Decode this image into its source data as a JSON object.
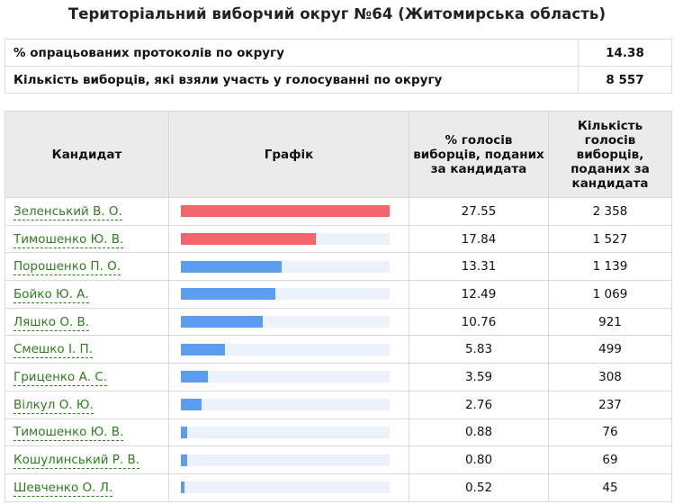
{
  "title": "Територіальний виборчий округ №64 (Житомирська область)",
  "summary": [
    {
      "label": "% опрацьованих протоколів по округу",
      "value": "14.38"
    },
    {
      "label": "Кількість виборців, які взяли участь у голосуванні по округу",
      "value": "8 557"
    }
  ],
  "table": {
    "headers": {
      "candidate": "Кандидат",
      "chart": "Графік",
      "percent": "% голосів виборців, поданих за кандидата",
      "count": "Кількість голосів виборців, поданих за кандидата"
    },
    "colors": {
      "leader": "#f2656a",
      "other": "#5b9ef0",
      "track": "#ecf2fb",
      "link": "#2e7d1f"
    },
    "rows": [
      {
        "name": "Зеленський В. О.",
        "percent": "27.55",
        "votes": "2 358",
        "bar_fraction": 1.0,
        "color": "#f2656a"
      },
      {
        "name": "Тимошенко Ю. В.",
        "percent": "17.84",
        "votes": "1 527",
        "bar_fraction": 0.6476,
        "color": "#f2656a"
      },
      {
        "name": "Порошенко П. О.",
        "percent": "13.31",
        "votes": "1 139",
        "bar_fraction": 0.4831,
        "color": "#5b9ef0"
      },
      {
        "name": "Бойко Ю. А.",
        "percent": "12.49",
        "votes": "1 069",
        "bar_fraction": 0.4534,
        "color": "#5b9ef0"
      },
      {
        "name": "Ляшко О. В.",
        "percent": "10.76",
        "votes": "921",
        "bar_fraction": 0.3906,
        "color": "#5b9ef0"
      },
      {
        "name": "Смешко І. П.",
        "percent": "5.83",
        "votes": "499",
        "bar_fraction": 0.2116,
        "color": "#5b9ef0"
      },
      {
        "name": "Гриценко А. С.",
        "percent": "3.59",
        "votes": "308",
        "bar_fraction": 0.1303,
        "color": "#5b9ef0"
      },
      {
        "name": "Вілкул О. Ю.",
        "percent": "2.76",
        "votes": "237",
        "bar_fraction": 0.1002,
        "color": "#5b9ef0"
      },
      {
        "name": "Тимошенко Ю. В.",
        "percent": "0.88",
        "votes": "76",
        "bar_fraction": 0.0319,
        "color": "#5b9ef0"
      },
      {
        "name": "Кошулинський Р. В.",
        "percent": "0.80",
        "votes": "69",
        "bar_fraction": 0.029,
        "color": "#5b9ef0"
      },
      {
        "name": "Шевченко О. Л.",
        "percent": "0.52",
        "votes": "45",
        "bar_fraction": 0.0189,
        "color": "#5b9ef0"
      }
    ]
  }
}
